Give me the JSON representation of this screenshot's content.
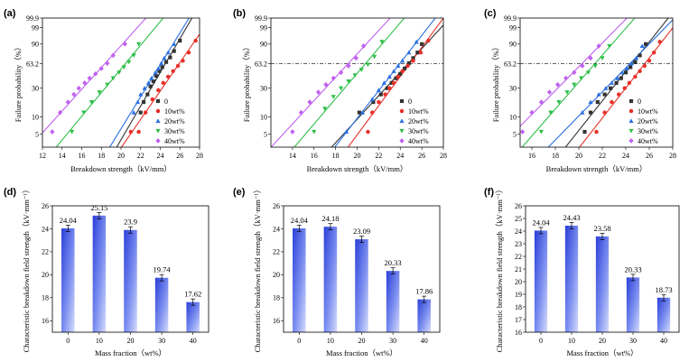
{
  "chart_data": [
    {
      "panel": "(a)",
      "type": "scatter",
      "xlabel": "Breakdown strength（kV/mm）",
      "ylabel": "Failure probability（%）",
      "x_ticks": [
        12,
        14,
        16,
        18,
        20,
        22,
        24,
        26,
        28
      ],
      "xlim": [
        12,
        28
      ],
      "y_ticks": [
        "5",
        "10",
        "30",
        "63.2",
        "90",
        "99",
        "99.9"
      ],
      "y_tick_values": [
        5,
        10,
        30,
        63.2,
        90,
        99,
        99.9
      ],
      "ref_line": null,
      "legend": [
        "0",
        "10wt%",
        "20wt%",
        "30wt%",
        "40wt%"
      ],
      "series": [
        {
          "name": "0",
          "color": "#333333",
          "marker": "square",
          "x": [
            22.0,
            22.3,
            22.7,
            23.0,
            23.3,
            23.6,
            23.9,
            24.2,
            24.6,
            25.0,
            25.4,
            26.0
          ],
          "y": [
            12,
            18,
            24,
            32,
            38,
            45,
            52,
            58,
            66,
            73,
            82,
            93
          ]
        },
        {
          "name": "10wt%",
          "color": "#e8302a",
          "marker": "circle",
          "x": [
            21.0,
            21.8,
            22.5,
            23.2,
            23.8,
            24.3,
            24.8,
            25.3,
            25.8,
            26.3,
            26.9,
            27.6
          ],
          "y": [
            5.5,
            5.5,
            12,
            20,
            28,
            36,
            44,
            52,
            60,
            68,
            80,
            93
          ]
        },
        {
          "name": "20wt%",
          "color": "#2a6fe0",
          "marker": "triangle",
          "x": [
            21.3,
            21.7,
            22.0,
            22.4,
            22.8,
            23.1,
            23.5,
            23.8,
            24.1,
            24.4,
            24.8,
            25.4
          ],
          "y": [
            12,
            18,
            24,
            30,
            36,
            42,
            50,
            56,
            64,
            72,
            80,
            90
          ]
        },
        {
          "name": "30wt%",
          "color": "#2fbf4a",
          "marker": "inverted-triangle",
          "x": [
            15.0,
            16.2,
            17.0,
            17.8,
            18.6,
            19.2,
            19.8,
            20.3,
            20.8,
            21.3,
            21.8
          ],
          "y": [
            5.5,
            12,
            18,
            26,
            34,
            42,
            50,
            58,
            66,
            76,
            90
          ]
        },
        {
          "name": "40wt%",
          "color": "#c060f0",
          "marker": "diamond",
          "x": [
            13.0,
            13.8,
            14.6,
            15.2,
            15.7,
            16.3,
            16.8,
            17.4,
            18.0,
            18.6,
            19.2,
            20.4
          ],
          "y": [
            5.5,
            12,
            18,
            24,
            30,
            36,
            42,
            48,
            56,
            64,
            76,
            90
          ]
        }
      ]
    },
    {
      "panel": "(b)",
      "type": "scatter",
      "xlabel": "Breakdown strength（kV/mm）",
      "ylabel": "Failure probability（%）",
      "x_ticks": [
        14,
        16,
        18,
        20,
        22,
        24,
        26,
        28
      ],
      "xlim": [
        12,
        28
      ],
      "y_ticks": [
        "5",
        "10",
        "30",
        "63.2",
        "90",
        "99",
        "99.9"
      ],
      "y_tick_values": [
        5,
        10,
        30,
        63.2,
        90,
        99,
        99.9
      ],
      "ref_line": 63.2,
      "legend": [
        "0",
        "10wt%",
        "20wt%",
        "30wt%",
        "40wt%"
      ],
      "series": [
        {
          "name": "0",
          "color": "#333333",
          "marker": "square",
          "x": [
            20.2,
            21.5,
            22.2,
            22.8,
            23.2,
            23.6,
            24.0,
            24.4,
            24.8,
            25.2,
            25.6,
            26.0
          ],
          "y": [
            12,
            18,
            24,
            30,
            36,
            42,
            48,
            56,
            64,
            72,
            80,
            90
          ]
        },
        {
          "name": "10wt%",
          "color": "#e8302a",
          "marker": "circle",
          "x": [
            21.0,
            21.4,
            22.0,
            22.6,
            23.0,
            23.4,
            23.8,
            24.2,
            24.7,
            25.2,
            25.9,
            26.6
          ],
          "y": [
            5.5,
            12,
            18,
            24,
            30,
            36,
            44,
            52,
            60,
            68,
            80,
            93
          ]
        },
        {
          "name": "20wt%",
          "color": "#2a6fe0",
          "marker": "triangle",
          "x": [
            19.0,
            20.5,
            21.4,
            22.0,
            22.5,
            23.0,
            23.4,
            23.8,
            24.2,
            24.8,
            25.5
          ],
          "y": [
            5.5,
            12,
            20,
            28,
            36,
            44,
            52,
            60,
            68,
            80,
            92
          ]
        },
        {
          "name": "30wt%",
          "color": "#2fbf4a",
          "marker": "inverted-triangle",
          "x": [
            16.0,
            17.0,
            17.8,
            18.5,
            19.2,
            19.8,
            20.4,
            21.0,
            21.6,
            22.3
          ],
          "y": [
            5.5,
            14,
            22,
            30,
            38,
            46,
            54,
            62,
            74,
            92
          ]
        },
        {
          "name": "40wt%",
          "color": "#c060f0",
          "marker": "diamond",
          "x": [
            14.0,
            14.8,
            15.6,
            16.4,
            17.1,
            17.8,
            18.5,
            19.2,
            19.9,
            20.6
          ],
          "y": [
            5.5,
            12,
            18,
            26,
            34,
            42,
            50,
            60,
            72,
            88
          ]
        }
      ]
    },
    {
      "panel": "(c)",
      "type": "scatter",
      "xlabel": "Breakdown strength（kV/mm）",
      "ylabel": "Failure probability（%）",
      "x_ticks": [
        16,
        18,
        20,
        22,
        24,
        26,
        28
      ],
      "xlim": [
        15,
        28
      ],
      "y_ticks": [
        "5",
        "10",
        "30",
        "63.2",
        "90",
        "99",
        "99.9"
      ],
      "y_tick_values": [
        5,
        10,
        30,
        63.2,
        90,
        99,
        99.9
      ],
      "ref_line": 63.2,
      "legend": [
        "0",
        "10wt%",
        "20wt%",
        "30wt%",
        "40wt%"
      ],
      "series": [
        {
          "name": "0",
          "color": "#333333",
          "marker": "square",
          "x": [
            20.5,
            21.0,
            21.6,
            22.2,
            22.7,
            23.2,
            23.6,
            24.0,
            24.4,
            24.8,
            25.2,
            25.7
          ],
          "y": [
            5.5,
            12,
            18,
            24,
            30,
            36,
            42,
            50,
            58,
            66,
            76,
            90
          ]
        },
        {
          "name": "10wt%",
          "color": "#e8302a",
          "marker": "circle",
          "x": [
            21.5,
            22.2,
            22.8,
            23.4,
            23.9,
            24.3,
            24.8,
            25.2,
            25.6,
            26.0,
            26.4,
            26.9
          ],
          "y": [
            5.5,
            12,
            18,
            24,
            30,
            36,
            44,
            52,
            60,
            68,
            80,
            92
          ]
        },
        {
          "name": "20wt%",
          "color": "#2a6fe0",
          "marker": "triangle",
          "x": [
            20.3,
            21.0,
            21.7,
            22.3,
            22.8,
            23.3,
            23.7,
            24.1,
            24.5,
            24.9,
            25.4
          ],
          "y": [
            12,
            18,
            24,
            30,
            36,
            42,
            50,
            56,
            64,
            72,
            88
          ]
        },
        {
          "name": "30wt%",
          "color": "#2fbf4a",
          "marker": "inverted-triangle",
          "x": [
            16.8,
            17.6,
            18.3,
            19.0,
            19.6,
            20.2,
            20.8,
            21.4,
            22.0,
            22.6
          ],
          "y": [
            5.5,
            12,
            18,
            26,
            34,
            42,
            50,
            60,
            72,
            88
          ]
        },
        {
          "name": "40wt%",
          "color": "#c060f0",
          "marker": "diamond",
          "x": [
            15.2,
            16.0,
            16.8,
            17.5,
            18.2,
            18.9,
            19.6,
            20.3,
            21.0,
            21.7
          ],
          "y": [
            5.5,
            12,
            18,
            26,
            34,
            42,
            50,
            60,
            72,
            88
          ]
        }
      ]
    },
    {
      "panel": "(d)",
      "type": "bar",
      "xlabel": "Mass fraction（wt%）",
      "ylabel": "Characteristic breakdown field strength（kV·mm⁻¹）",
      "categories": [
        "0",
        "10",
        "20",
        "30",
        "40"
      ],
      "values": [
        24.04,
        25.15,
        23.9,
        19.74,
        17.62
      ],
      "value_labels": [
        "24.04",
        "25.15",
        "23.9",
        "19.74",
        "17.62"
      ],
      "ylim": [
        15,
        26
      ],
      "y_ticks": [
        "16",
        "18",
        "20",
        "22",
        "24",
        "26"
      ]
    },
    {
      "panel": "(e)",
      "type": "bar",
      "xlabel": "Mass fraction（wt%）",
      "ylabel": "Characteristic breakdown field strength（kV·mm⁻¹）",
      "categories": [
        "0",
        "10",
        "20",
        "30",
        "40"
      ],
      "values": [
        24.04,
        24.18,
        23.09,
        20.33,
        17.86
      ],
      "value_labels": [
        "24.04",
        "24.18",
        "23.09",
        "20.33",
        "17.86"
      ],
      "ylim": [
        15,
        26
      ],
      "y_ticks": [
        "16",
        "18",
        "20",
        "22",
        "24",
        "26"
      ]
    },
    {
      "panel": "(f)",
      "type": "bar",
      "xlabel": "Mass fraction（wt%）",
      "ylabel": "Characteristic breakdown field strength（kV·mm⁻¹）",
      "categories": [
        "0",
        "10",
        "20",
        "30",
        "40"
      ],
      "values": [
        24.04,
        24.43,
        23.58,
        20.33,
        18.73
      ],
      "value_labels": [
        "24.04",
        "24.43",
        "23.58",
        "20.33",
        "18.73"
      ],
      "ylim": [
        16,
        26
      ],
      "y_ticks": [
        "16",
        "17",
        "18",
        "19",
        "20",
        "21",
        "22",
        "23",
        "24",
        "25",
        "26"
      ]
    }
  ]
}
